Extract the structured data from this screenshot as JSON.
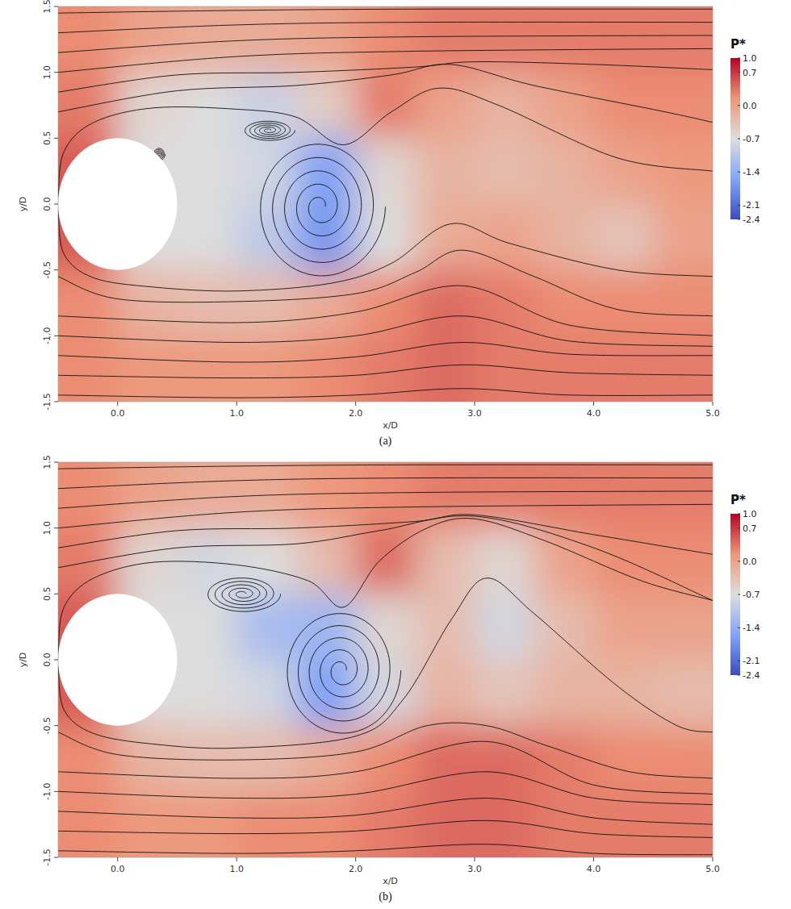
{
  "chart_data": [
    {
      "type": "contour",
      "caption": "(a)",
      "x_label": "x/D",
      "y_label": "y/D",
      "xlim": [
        -0.5,
        5
      ],
      "ylim": [
        -1.5,
        1.5
      ],
      "xticks": [
        {
          "value": 0,
          "label": "0.0"
        },
        {
          "value": 1,
          "label": "1.0"
        },
        {
          "value": 2,
          "label": "2.0"
        },
        {
          "value": 3,
          "label": "3.0"
        },
        {
          "value": 4,
          "label": "4.0"
        },
        {
          "value": 5,
          "label": "5.0"
        }
      ],
      "yticks": [
        -1.5,
        {
          "value": -1,
          "label": "-1.0"
        },
        -0.5,
        {
          "value": 0,
          "label": "0.0"
        },
        0.5,
        {
          "value": 1,
          "label": "1.0"
        },
        1.5
      ],
      "x_edges": [
        -0.5,
        0,
        0.5,
        1,
        1.5,
        2,
        2.5,
        3,
        3.5,
        4,
        4.5,
        5
      ],
      "y_edges": [
        1.5,
        1,
        0.5,
        0,
        -0.5,
        -1,
        -1.5
      ],
      "cells": [
        [
          0.2,
          0.0,
          -0.1,
          -0.1,
          0.0,
          0.2,
          0.3,
          0.3,
          0.3,
          0.3,
          0.3
        ],
        [
          0.3,
          -0.6,
          -0.7,
          -0.9,
          -0.5,
          0.3,
          0.0,
          -0.2,
          0.0,
          0.2,
          0.2
        ],
        [
          0.5,
          -0.7,
          -0.7,
          -0.8,
          -1.6,
          -0.6,
          -0.2,
          -0.3,
          -0.2,
          0.0,
          0.1
        ],
        [
          0.5,
          -0.7,
          -0.7,
          -1.0,
          -1.7,
          -0.7,
          -0.1,
          0.0,
          -0.2,
          -0.4,
          0.0
        ],
        [
          0.2,
          -0.2,
          -0.3,
          -0.3,
          -0.1,
          0.2,
          0.4,
          0.3,
          0.2,
          0.2,
          0.2
        ],
        [
          0.2,
          0.1,
          0.1,
          0.1,
          0.2,
          0.3,
          0.4,
          0.3,
          0.3,
          0.3,
          0.3
        ]
      ],
      "cylinder": {
        "x": 0,
        "y": 0,
        "d": 1
      },
      "streamlines": [
        {
          "x": [
            -0.5,
            1,
            2.5,
            5
          ],
          "y": [
            1.45,
            1.47,
            1.48,
            1.48
          ]
        },
        {
          "x": [
            -0.5,
            1,
            2.5,
            5
          ],
          "y": [
            1.3,
            1.36,
            1.38,
            1.38
          ]
        },
        {
          "x": [
            -0.5,
            1,
            2.5,
            5
          ],
          "y": [
            1.15,
            1.24,
            1.27,
            1.28
          ]
        },
        {
          "x": [
            -0.5,
            1,
            2.5,
            5
          ],
          "y": [
            1.0,
            1.12,
            1.16,
            1.18
          ]
        },
        {
          "x": [
            -0.5,
            0.5,
            1.5,
            2.5,
            3,
            4,
            5
          ],
          "y": [
            0.85,
            0.98,
            1.0,
            1.04,
            1.08,
            1.06,
            1.02
          ]
        },
        {
          "x": [
            -0.5,
            0.5,
            1.5,
            2.3,
            2.8,
            3.5,
            4.6,
            5
          ],
          "y": [
            0.7,
            0.86,
            0.9,
            0.98,
            1.06,
            0.9,
            0.7,
            0.62
          ]
        },
        {
          "x": [
            -0.5,
            -0.45,
            -0.2,
            0.3,
            1.0,
            1.5,
            1.9,
            2.3,
            2.7,
            3.2,
            4.2,
            5
          ],
          "y": [
            0.05,
            0.4,
            0.62,
            0.73,
            0.72,
            0.66,
            0.45,
            0.7,
            0.88,
            0.75,
            0.35,
            0.25
          ]
        },
        {
          "x": [
            -0.5,
            -0.45,
            -0.2,
            0.3,
            1.0,
            1.8,
            2.3,
            2.8,
            3.3,
            4.2,
            5
          ],
          "y": [
            -0.05,
            -0.38,
            -0.56,
            -0.63,
            -0.66,
            -0.6,
            -0.45,
            -0.15,
            -0.3,
            -0.5,
            -0.55
          ]
        },
        {
          "x": [
            -0.5,
            0,
            1,
            2,
            2.5,
            2.9,
            3.5,
            4.2,
            5
          ],
          "y": [
            -0.55,
            -0.72,
            -0.74,
            -0.68,
            -0.52,
            -0.35,
            -0.55,
            -0.8,
            -0.85
          ]
        },
        {
          "x": [
            -0.5,
            1,
            2,
            2.9,
            3.8,
            5
          ],
          "y": [
            -0.85,
            -0.9,
            -0.82,
            -0.62,
            -0.92,
            -1.0
          ]
        },
        {
          "x": [
            -0.5,
            1,
            2,
            2.9,
            3.8,
            5
          ],
          "y": [
            -1.0,
            -1.05,
            -1.0,
            -0.85,
            -1.04,
            -1.08
          ]
        },
        {
          "x": [
            -0.5,
            1,
            2,
            2.9,
            3.8,
            5
          ],
          "y": [
            -1.15,
            -1.2,
            -1.16,
            -1.05,
            -1.14,
            -1.15
          ]
        },
        {
          "x": [
            -0.5,
            1,
            2,
            2.9,
            3.8,
            5
          ],
          "y": [
            -1.3,
            -1.32,
            -1.3,
            -1.22,
            -1.28,
            -1.3
          ]
        },
        {
          "x": [
            -0.5,
            1,
            2,
            2.9,
            3.8,
            5
          ],
          "y": [
            -1.45,
            -1.47,
            -1.45,
            -1.4,
            -1.45,
            -1.45
          ]
        }
      ],
      "vortices": [
        {
          "x": 1.7,
          "y": -0.02,
          "rx": 0.55,
          "ry": 0.55
        },
        {
          "x": 1.27,
          "y": 0.56,
          "rx": 0.22,
          "ry": 0.08
        },
        {
          "x": 0.35,
          "y": 0.38,
          "rx": 0.05,
          "ry": 0.05
        }
      ],
      "colorbar": {
        "title": "P*",
        "range": [
          -2.4,
          1.0
        ],
        "ticks": [
          {
            "value": 1,
            "label": "1.0"
          },
          0.7,
          {
            "value": 0,
            "label": "0.0"
          },
          -0.7,
          -1.4,
          -2.1,
          -2.4
        ]
      }
    },
    {
      "type": "contour",
      "caption": "(b)",
      "x_label": "x/D",
      "y_label": "y/D",
      "xlim": [
        -0.5,
        5
      ],
      "ylim": [
        -1.5,
        1.5
      ],
      "xticks": [
        {
          "value": 0,
          "label": "0.0"
        },
        {
          "value": 1,
          "label": "1.0"
        },
        {
          "value": 2,
          "label": "2.0"
        },
        {
          "value": 3,
          "label": "3.0"
        },
        {
          "value": 4,
          "label": "4.0"
        },
        {
          "value": 5,
          "label": "5.0"
        }
      ],
      "yticks": [
        -1.5,
        {
          "value": -1,
          "label": "-1.0"
        },
        -0.5,
        {
          "value": 0,
          "label": "0.0"
        },
        0.5,
        {
          "value": 1,
          "label": "1.0"
        },
        1.5
      ],
      "x_edges": [
        -0.5,
        0,
        0.5,
        1,
        1.5,
        2,
        2.5,
        3,
        3.5,
        4,
        4.5,
        5
      ],
      "y_edges": [
        1.5,
        1,
        0.5,
        0,
        -0.5,
        -1,
        -1.5
      ],
      "cells": [
        [
          0.2,
          0.0,
          -0.1,
          -0.1,
          0.1,
          0.2,
          0.3,
          0.3,
          0.3,
          0.3,
          0.3
        ],
        [
          0.3,
          -0.6,
          -0.8,
          -0.7,
          -0.3,
          0.4,
          -0.3,
          -0.6,
          0.0,
          0.2,
          0.2
        ],
        [
          0.5,
          -0.7,
          -0.7,
          -1.2,
          -1.3,
          -0.6,
          -0.3,
          -0.8,
          -0.3,
          0.0,
          0.0
        ],
        [
          0.5,
          -0.7,
          -0.7,
          -0.8,
          -1.6,
          -0.8,
          -0.2,
          -0.4,
          -0.2,
          -0.2,
          -0.3
        ],
        [
          0.2,
          -0.2,
          -0.3,
          -0.3,
          -0.1,
          0.2,
          0.4,
          0.4,
          0.3,
          0.2,
          0.2
        ],
        [
          0.2,
          0.1,
          0.1,
          0.2,
          0.2,
          0.3,
          0.4,
          0.4,
          0.3,
          0.3,
          0.3
        ]
      ],
      "cylinder": {
        "x": 0,
        "y": 0,
        "d": 1
      },
      "streamlines": [
        {
          "x": [
            -0.5,
            1,
            2.5,
            5
          ],
          "y": [
            1.45,
            1.47,
            1.48,
            1.48
          ]
        },
        {
          "x": [
            -0.5,
            1,
            2.5,
            5
          ],
          "y": [
            1.3,
            1.36,
            1.38,
            1.38
          ]
        },
        {
          "x": [
            -0.5,
            1,
            2.5,
            5
          ],
          "y": [
            1.15,
            1.24,
            1.27,
            1.28
          ]
        },
        {
          "x": [
            -0.5,
            1,
            2.5,
            5
          ],
          "y": [
            1.0,
            1.12,
            1.16,
            1.18
          ]
        },
        {
          "x": [
            -0.5,
            0.5,
            1.5,
            2.5,
            3,
            4,
            5
          ],
          "y": [
            0.85,
            0.98,
            1.0,
            1.05,
            1.1,
            0.95,
            0.8
          ]
        },
        {
          "x": [
            -0.5,
            0.5,
            1.5,
            2.2,
            3,
            4,
            5
          ],
          "y": [
            0.7,
            0.85,
            0.88,
            0.98,
            1.09,
            0.85,
            0.45
          ]
        },
        {
          "x": [
            -0.5,
            -0.45,
            -0.2,
            0.3,
            1.0,
            1.6,
            1.9,
            2.2,
            2.6,
            3.0,
            3.6,
            4.4,
            5
          ],
          "y": [
            0.05,
            0.4,
            0.62,
            0.74,
            0.72,
            0.6,
            0.4,
            0.75,
            1.0,
            1.07,
            0.9,
            0.6,
            0.45
          ]
        },
        {
          "x": [
            -0.5,
            -0.45,
            -0.2,
            0.3,
            1.0,
            2.0,
            2.4,
            2.8,
            3.1,
            3.5,
            4.2,
            4.7,
            5
          ],
          "y": [
            -0.05,
            -0.38,
            -0.56,
            -0.64,
            -0.67,
            -0.58,
            -0.3,
            0.3,
            0.62,
            0.35,
            -0.2,
            -0.5,
            -0.55
          ]
        },
        {
          "x": [
            -0.5,
            0,
            1,
            2,
            2.6,
            3.1,
            3.6,
            4.3,
            5
          ],
          "y": [
            -0.55,
            -0.72,
            -0.76,
            -0.7,
            -0.5,
            -0.5,
            -0.65,
            -0.85,
            -0.9
          ]
        },
        {
          "x": [
            -0.5,
            1,
            2,
            3.1,
            4,
            5
          ],
          "y": [
            -0.85,
            -0.9,
            -0.85,
            -0.62,
            -0.95,
            -1.02
          ]
        },
        {
          "x": [
            -0.5,
            1,
            2,
            3.1,
            4,
            5
          ],
          "y": [
            -1.0,
            -1.05,
            -1.02,
            -0.85,
            -1.05,
            -1.1
          ]
        },
        {
          "x": [
            -0.5,
            1,
            2,
            3.1,
            4,
            5
          ],
          "y": [
            -1.15,
            -1.2,
            -1.18,
            -1.05,
            -1.2,
            -1.25
          ]
        },
        {
          "x": [
            -0.5,
            1,
            2,
            3.1,
            4,
            5
          ],
          "y": [
            -1.3,
            -1.32,
            -1.3,
            -1.22,
            -1.32,
            -1.35
          ]
        },
        {
          "x": [
            -0.5,
            1,
            2,
            3.1,
            4,
            5
          ],
          "y": [
            -1.45,
            -1.47,
            -1.45,
            -1.4,
            -1.47,
            -1.48
          ]
        }
      ],
      "vortices": [
        {
          "x": 1.88,
          "y": -0.08,
          "rx": 0.5,
          "ry": 0.5
        },
        {
          "x": 1.05,
          "y": 0.5,
          "rx": 0.32,
          "ry": 0.14
        }
      ],
      "colorbar": {
        "title": "P*",
        "range": [
          -2.4,
          1.0
        ],
        "ticks": [
          {
            "value": 1,
            "label": "1.0"
          },
          0.7,
          {
            "value": 0,
            "label": "0.0"
          },
          -0.7,
          -1.4,
          -2.1,
          -2.4
        ]
      }
    }
  ]
}
